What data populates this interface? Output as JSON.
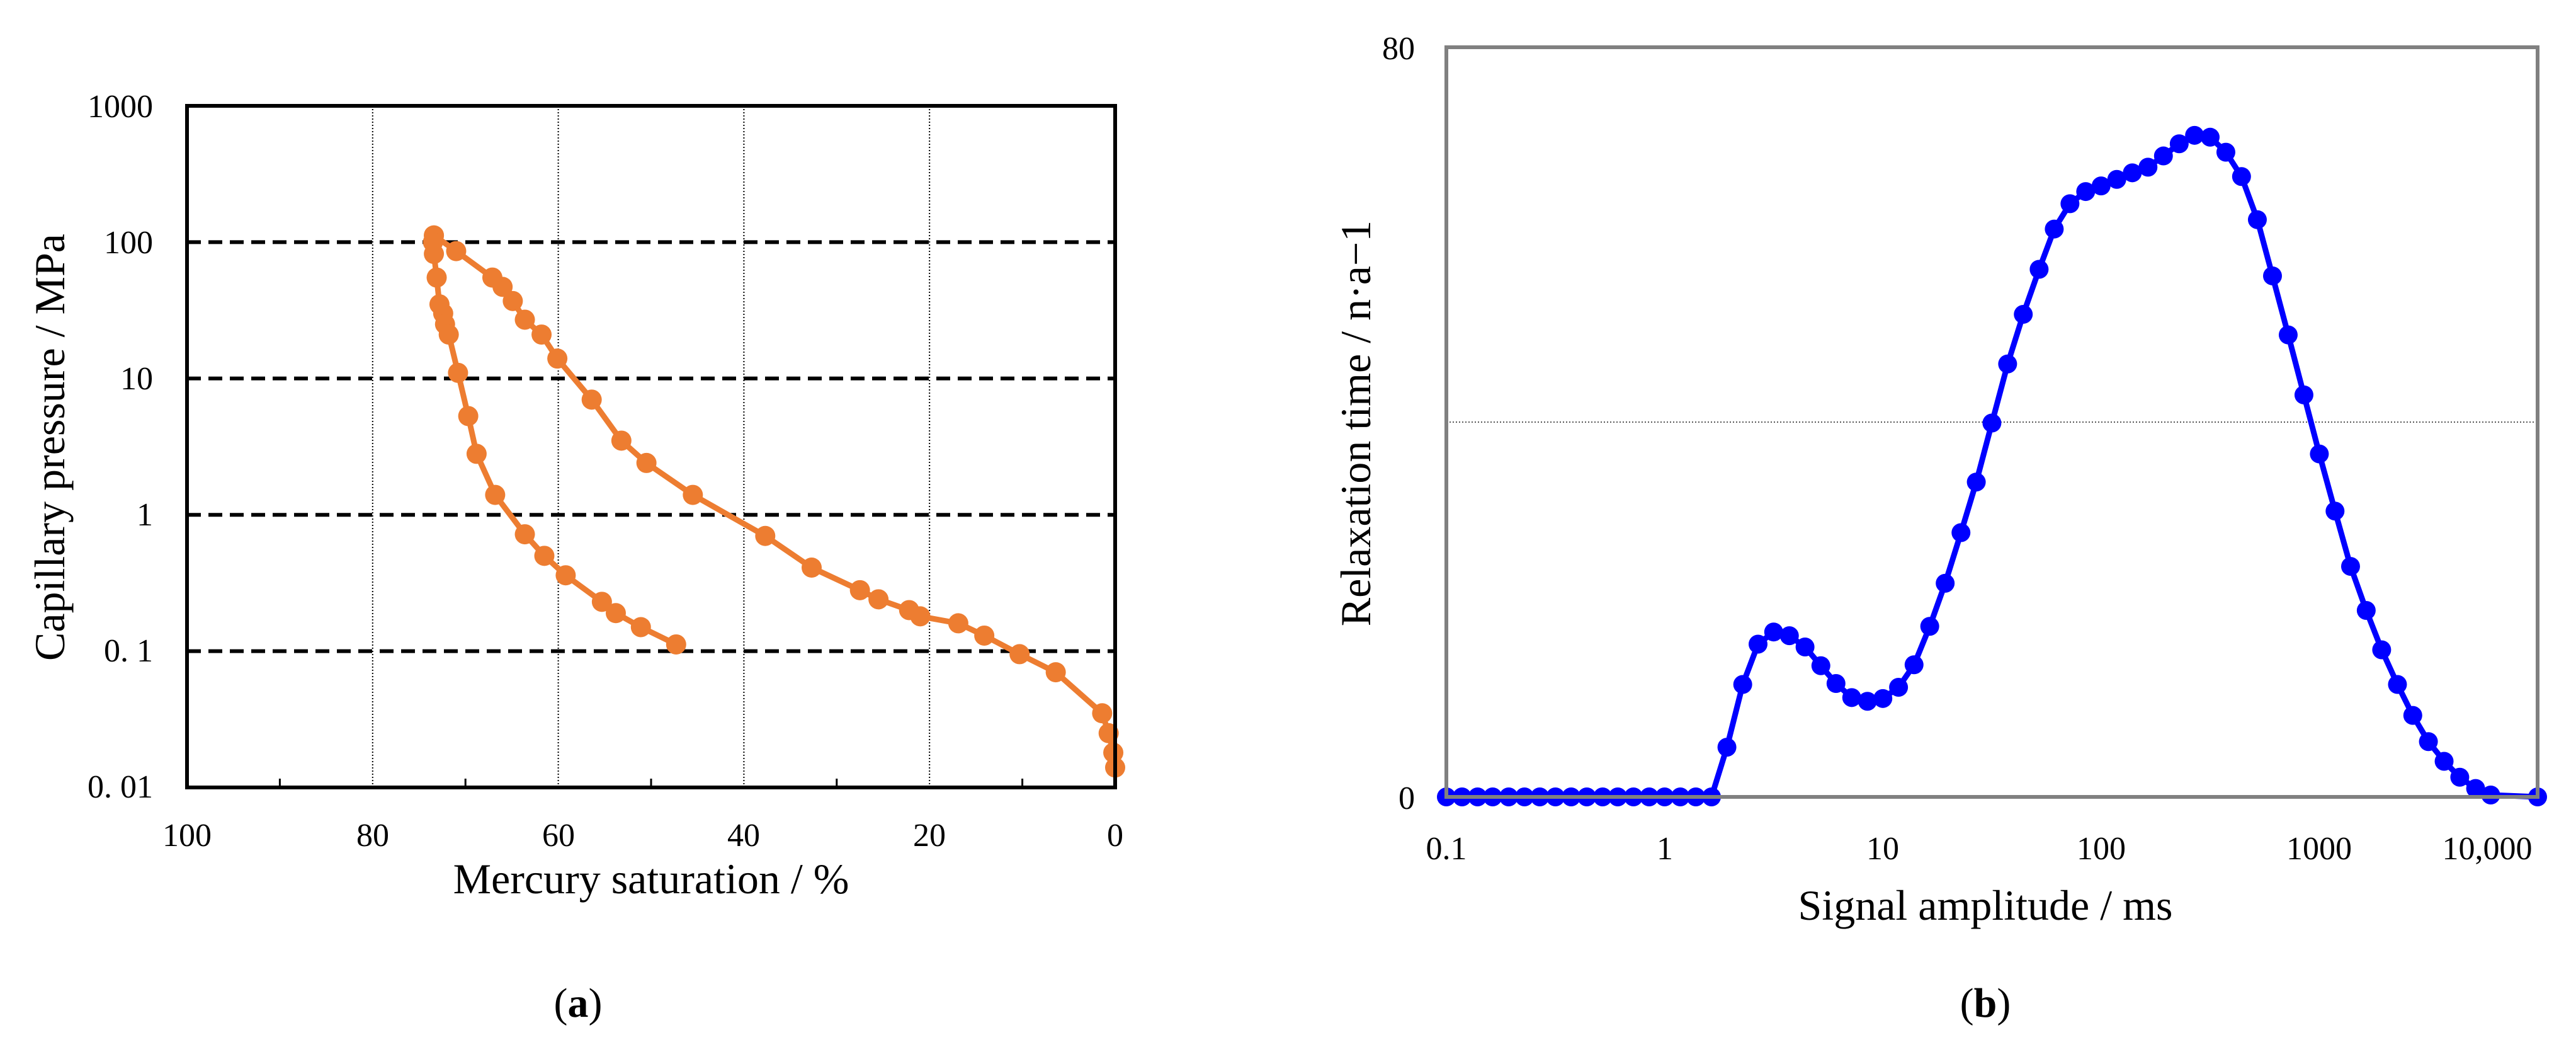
{
  "colors": {
    "orange": "#ED7D31",
    "blue": "#0000FF",
    "frame_a": "#000000",
    "frame_b": "#808080"
  },
  "chart_data": [
    {
      "id": "a",
      "type": "line",
      "caption_open": "(",
      "caption_letter": "a",
      "caption_close": ")",
      "xlabel": "Mercury saturation  / %",
      "ylabel": "Capillary pressure / MPa",
      "x_reversed": true,
      "xlim": [
        0,
        100
      ],
      "y_scale": "log",
      "ylim": [
        0.01,
        1000
      ],
      "x_ticks": [
        "100",
        "80",
        "60",
        "40",
        "20",
        "0"
      ],
      "y_ticks": [
        "0. 01",
        "0. 1",
        "1",
        "10",
        "100",
        "1000"
      ],
      "grid": "y dashed at 0.1, 1, 10, 100; x dotted at 20, 40, 60, 80",
      "series": [
        {
          "color": "#ED7D31",
          "points": [
            [
              0,
              0.014
            ],
            [
              0.2,
              0.018
            ],
            [
              0.7,
              0.025
            ],
            [
              1.4,
              0.035
            ],
            [
              6.4,
              0.07
            ],
            [
              10.3,
              0.095
            ],
            [
              14.1,
              0.13
            ],
            [
              16.9,
              0.16
            ],
            [
              21,
              0.18
            ],
            [
              22.2,
              0.2
            ],
            [
              25.5,
              0.24
            ],
            [
              27.5,
              0.28
            ],
            [
              32.7,
              0.41
            ],
            [
              37.7,
              0.7
            ],
            [
              45.5,
              1.4
            ],
            [
              50.5,
              2.4
            ],
            [
              53.2,
              3.5
            ],
            [
              56.4,
              7
            ],
            [
              60.1,
              14
            ],
            [
              61.8,
              21
            ],
            [
              63.6,
              27
            ],
            [
              64.9,
              37
            ],
            [
              66,
              47
            ],
            [
              67.1,
              55
            ],
            [
              71,
              86
            ],
            [
              73.4,
              112
            ]
          ]
        },
        {
          "color": "#ED7D31",
          "points": [
            [
              73.4,
              112
            ],
            [
              73.5,
              100
            ],
            [
              73.4,
              82
            ],
            [
              73.1,
              55
            ],
            [
              72.8,
              35
            ],
            [
              72.4,
              30
            ],
            [
              72.2,
              25
            ],
            [
              71.8,
              21
            ],
            [
              70.8,
              11
            ],
            [
              69.7,
              5.3
            ],
            [
              68.8,
              2.8
            ],
            [
              66.8,
              1.4
            ],
            [
              63.6,
              0.72
            ],
            [
              61.5,
              0.5
            ],
            [
              59.2,
              0.36
            ],
            [
              55.3,
              0.23
            ],
            [
              53.8,
              0.19
            ],
            [
              51.1,
              0.15
            ],
            [
              47.3,
              0.112
            ]
          ]
        }
      ]
    },
    {
      "id": "b",
      "type": "line",
      "caption_open": "(",
      "caption_letter": "b",
      "caption_close": ")",
      "xlabel": "Signal amplitude / ms",
      "ylabel": "Relaxation time / n·a−1",
      "x_scale": "log",
      "xlim": [
        0.1,
        10000
      ],
      "ylim": [
        0,
        80
      ],
      "x_ticks": [
        "0.1",
        "1",
        "10",
        "100",
        "1000",
        "10,000"
      ],
      "y_ticks": [
        "0",
        "80"
      ],
      "grid": "y dotted at 40",
      "series": [
        {
          "color": "#0000FF",
          "points": [
            [
              0.1,
              0
            ],
            [
              0.118,
              0
            ],
            [
              0.139,
              0
            ],
            [
              0.163,
              0
            ],
            [
              0.193,
              0
            ],
            [
              0.228,
              0
            ],
            [
              0.268,
              0
            ],
            [
              0.316,
              0
            ],
            [
              0.373,
              0
            ],
            [
              0.44,
              0
            ],
            [
              0.52,
              0
            ],
            [
              0.61,
              0
            ],
            [
              0.72,
              0
            ],
            [
              0.85,
              0
            ],
            [
              1.0,
              0
            ],
            [
              1.18,
              0
            ],
            [
              1.39,
              0
            ],
            [
              1.64,
              0
            ],
            [
              1.93,
              5.3
            ],
            [
              2.28,
              12
            ],
            [
              2.68,
              16.3
            ],
            [
              3.16,
              17.6
            ],
            [
              3.73,
              17.2
            ],
            [
              4.4,
              16
            ],
            [
              5.2,
              14
            ],
            [
              6.1,
              12.1
            ],
            [
              7.2,
              10.6
            ],
            [
              8.5,
              10.2
            ],
            [
              10,
              10.5
            ],
            [
              11.8,
              11.7
            ],
            [
              13.9,
              14.1
            ],
            [
              16.4,
              18.2
            ],
            [
              19.3,
              22.8
            ],
            [
              22.8,
              28.2
            ],
            [
              26.8,
              33.6
            ],
            [
              31.6,
              39.9
            ],
            [
              37.3,
              46.2
            ],
            [
              44,
              51.5
            ],
            [
              52,
              56.3
            ],
            [
              61,
              60.6
            ],
            [
              72,
              63.3
            ],
            [
              85,
              64.6
            ],
            [
              100,
              65.2
            ],
            [
              118,
              65.9
            ],
            [
              139,
              66.6
            ],
            [
              164,
              67.2
            ],
            [
              193,
              68.4
            ],
            [
              228,
              69.7
            ],
            [
              268,
              70.6
            ],
            [
              316,
              70.4
            ],
            [
              373,
              68.8
            ],
            [
              440,
              66.2
            ],
            [
              520,
              61.6
            ],
            [
              610,
              55.6
            ],
            [
              720,
              49.3
            ],
            [
              850,
              42.9
            ],
            [
              1000,
              36.6
            ],
            [
              1180,
              30.5
            ],
            [
              1390,
              24.6
            ],
            [
              1640,
              19.9
            ],
            [
              1930,
              15.7
            ],
            [
              2280,
              12
            ],
            [
              2680,
              8.7
            ],
            [
              3160,
              5.9
            ],
            [
              3730,
              3.8
            ],
            [
              4400,
              2.1
            ],
            [
              5200,
              0.9
            ],
            [
              6100,
              0.2
            ],
            [
              10000,
              0
            ]
          ]
        }
      ]
    }
  ]
}
